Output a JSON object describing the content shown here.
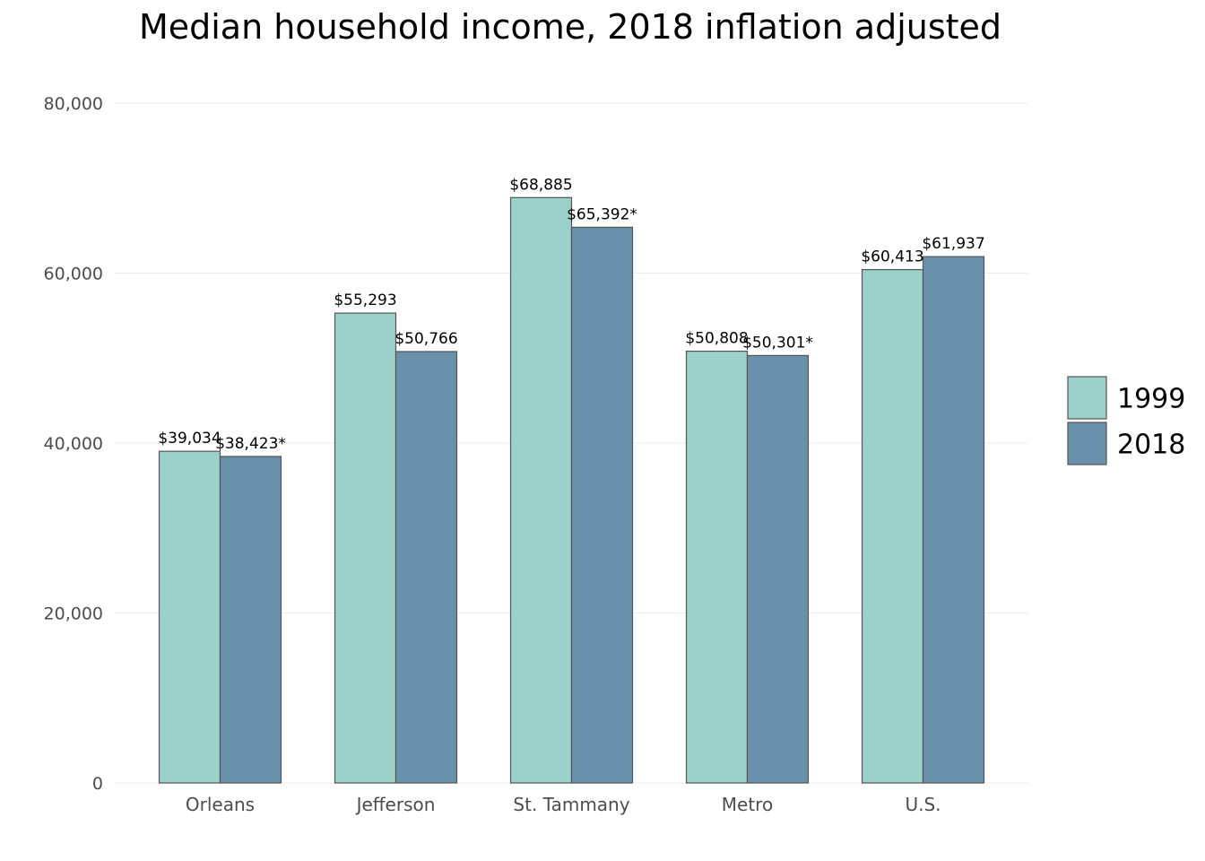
{
  "chart_data": {
    "type": "bar",
    "title": "Median household income, 2018 inflation adjusted",
    "xlabel": "",
    "ylabel": "",
    "categories": [
      "Orleans",
      "Jefferson",
      "St. Tammany",
      "Metro",
      "U.S."
    ],
    "series": [
      {
        "name": "1999",
        "color": "#9bd0cb",
        "values": [
          39034,
          55293,
          68885,
          50808,
          60413
        ],
        "labels": [
          "$39,034",
          "$55,293",
          "$68,885",
          "$50,808",
          "$60,413"
        ]
      },
      {
        "name": "2018",
        "color": "#6890aa",
        "values": [
          38423,
          50766,
          65392,
          50301,
          61937
        ],
        "labels": [
          "$38,423*",
          "$50,766",
          "$65,392*",
          "$50,301*",
          "$61,937"
        ]
      }
    ],
    "ylim": [
      0,
      80000
    ],
    "yticks": [
      0,
      20000,
      40000,
      60000,
      80000
    ],
    "ytick_labels": [
      "0",
      "20,000",
      "40,000",
      "60,000",
      "80,000"
    ],
    "grid": true,
    "legend_position": "right"
  }
}
